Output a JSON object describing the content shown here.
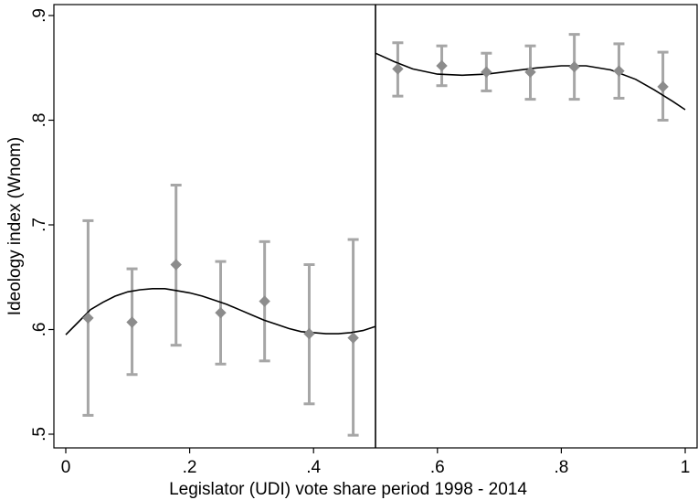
{
  "chart_data": {
    "type": "scatter",
    "xlabel": "Legislator (UDI) vote share period 1998 - 2014",
    "ylabel": "Ideology index (Wnom)",
    "xlim": [
      0,
      1
    ],
    "ylim": [
      0.5,
      0.9
    ],
    "x_ticks": [
      0,
      0.2,
      0.4,
      0.6,
      0.8,
      1
    ],
    "x_tick_labels": [
      "0",
      ".2",
      ".4",
      ".6",
      ".8",
      "1"
    ],
    "y_ticks": [
      0.5,
      0.6,
      0.7,
      0.8,
      0.9
    ],
    "y_tick_labels": [
      ".5",
      ".6",
      ".7",
      ".8",
      ".9"
    ],
    "grid": false,
    "threshold_x": 0.5,
    "colors": {
      "points": "#8c8c8c",
      "error_bars": "#a6a6a6",
      "fit_line": "#000000"
    },
    "points": [
      {
        "x": 0.036,
        "y": 0.611,
        "lo": 0.518,
        "hi": 0.704
      },
      {
        "x": 0.107,
        "y": 0.607,
        "lo": 0.557,
        "hi": 0.658
      },
      {
        "x": 0.178,
        "y": 0.662,
        "lo": 0.585,
        "hi": 0.738
      },
      {
        "x": 0.25,
        "y": 0.616,
        "lo": 0.567,
        "hi": 0.665
      },
      {
        "x": 0.321,
        "y": 0.627,
        "lo": 0.57,
        "hi": 0.684
      },
      {
        "x": 0.393,
        "y": 0.596,
        "lo": 0.529,
        "hi": 0.662
      },
      {
        "x": 0.464,
        "y": 0.592,
        "lo": 0.499,
        "hi": 0.686
      },
      {
        "x": 0.536,
        "y": 0.849,
        "lo": 0.823,
        "hi": 0.874
      },
      {
        "x": 0.607,
        "y": 0.852,
        "lo": 0.833,
        "hi": 0.871
      },
      {
        "x": 0.679,
        "y": 0.846,
        "lo": 0.828,
        "hi": 0.864
      },
      {
        "x": 0.75,
        "y": 0.846,
        "lo": 0.82,
        "hi": 0.871
      },
      {
        "x": 0.821,
        "y": 0.851,
        "lo": 0.82,
        "hi": 0.882
      },
      {
        "x": 0.893,
        "y": 0.847,
        "lo": 0.821,
        "hi": 0.873
      },
      {
        "x": 0.964,
        "y": 0.832,
        "lo": 0.8,
        "hi": 0.865
      }
    ],
    "fit_left": {
      "x": [
        0,
        0.02,
        0.04,
        0.06,
        0.08,
        0.1,
        0.12,
        0.14,
        0.16,
        0.18,
        0.2,
        0.22,
        0.24,
        0.26,
        0.28,
        0.3,
        0.32,
        0.34,
        0.36,
        0.38,
        0.4,
        0.42,
        0.44,
        0.46,
        0.48,
        0.5
      ],
      "y": [
        0.595,
        0.607,
        0.619,
        0.626,
        0.632,
        0.636,
        0.638,
        0.639,
        0.639,
        0.637,
        0.635,
        0.632,
        0.628,
        0.624,
        0.619,
        0.614,
        0.609,
        0.605,
        0.601,
        0.598,
        0.597,
        0.596,
        0.596,
        0.597,
        0.599,
        0.603
      ]
    },
    "fit_right": {
      "x": [
        0.5,
        0.53,
        0.56,
        0.6,
        0.64,
        0.68,
        0.72,
        0.76,
        0.8,
        0.84,
        0.88,
        0.92,
        0.95,
        0.98,
        1.0
      ],
      "y": [
        0.864,
        0.856,
        0.849,
        0.844,
        0.843,
        0.844,
        0.847,
        0.85,
        0.852,
        0.852,
        0.848,
        0.839,
        0.829,
        0.818,
        0.81
      ]
    }
  }
}
